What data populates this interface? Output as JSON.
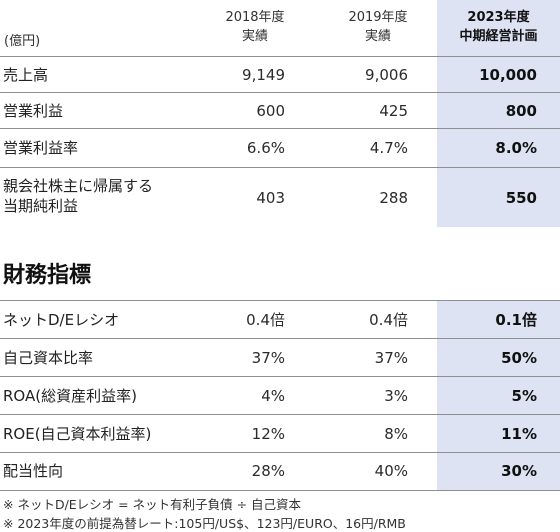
{
  "header": {
    "unit": "(億円)",
    "col1_line1": "2018年度",
    "col1_line2": "実績",
    "col2_line1": "2019年度",
    "col2_line2": "実績",
    "col3_line1": "2023年度",
    "col3_line2": "中期経営計画"
  },
  "results": [
    {
      "label": "売上高",
      "v2018": "9,149",
      "v2019": "9,006",
      "v2023": "10,000"
    },
    {
      "label": "営業利益",
      "v2018": "600",
      "v2019": "425",
      "v2023": "800"
    },
    {
      "label": "営業利益率",
      "v2018": "6.6%",
      "v2019": "4.7%",
      "v2023": "8.0%"
    },
    {
      "label_line1": "親会社株主に帰属する",
      "label_line2": "当期純利益",
      "v2018": "403",
      "v2019": "288",
      "v2023": "550"
    }
  ],
  "section_title": "財務指標",
  "indicators": [
    {
      "label": "ネットD/Eレシオ",
      "v2018": "0.4倍",
      "v2019": "0.4倍",
      "v2023": "0.1倍"
    },
    {
      "label": "自己資本比率",
      "v2018": "37%",
      "v2019": "37%",
      "v2023": "50%"
    },
    {
      "label": "ROA(総資産利益率)",
      "v2018": "4%",
      "v2019": "3%",
      "v2023": "5%"
    },
    {
      "label": "ROE(自己資本利益率)",
      "v2018": "12%",
      "v2019": "8%",
      "v2023": "11%"
    },
    {
      "label": "配当性向",
      "v2018": "28%",
      "v2019": "40%",
      "v2023": "30%"
    }
  ],
  "notes": [
    "※ ネットD/Eレシオ = ネット有利子負債 ÷ 自己資本",
    "※ 2023年度の前提為替レート:105円/US$、123円/EURO、16円/RMB"
  ],
  "colors": {
    "highlight": "#dde3f2",
    "rule": "#8f8f8f"
  }
}
